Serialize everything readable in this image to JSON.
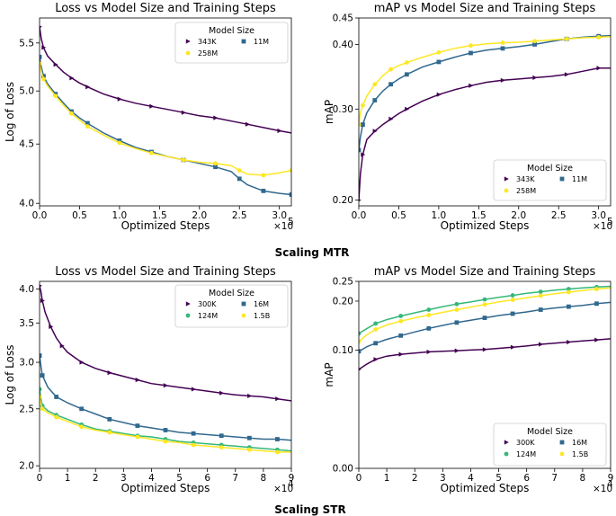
{
  "sections": [
    "Scaling MTR",
    "Scaling STR"
  ],
  "chart_data": [
    {
      "type": "line",
      "title": "Loss vs Model Size and Training Steps",
      "xlabel": "Optimized Steps",
      "ylabel": "Log of Loss",
      "x_multiplier": "×10",
      "x_exponent": "5",
      "xlim": [
        0,
        3.15
      ],
      "ylim": [
        3.98,
        5.78
      ],
      "yscale": "log",
      "xticks": [
        0,
        0.5,
        1,
        1.5,
        2,
        2.5,
        3
      ],
      "xtick_labels": [
        "0.0",
        "0.5",
        "1.0",
        "1.5",
        "2.0",
        "2.5",
        "3.0"
      ],
      "yticks": [
        4.0,
        4.5,
        5.0,
        5.5
      ],
      "ytick_labels": [
        "4.0",
        "4.5",
        "5.0",
        "5.5"
      ],
      "legend": {
        "title": "Model Size",
        "position": "top-right"
      },
      "series": [
        {
          "name": "343K",
          "color": "#440154",
          "marker": "triangle",
          "x": [
            0,
            0.02,
            0.05,
            0.1,
            0.2,
            0.3,
            0.4,
            0.5,
            0.6,
            0.8,
            1.0,
            1.2,
            1.4,
            1.6,
            1.8,
            2.0,
            2.2,
            2.4,
            2.6,
            2.8,
            3.0,
            3.15
          ],
          "y": [
            5.68,
            5.55,
            5.45,
            5.36,
            5.27,
            5.19,
            5.13,
            5.08,
            5.04,
            4.97,
            4.92,
            4.88,
            4.85,
            4.82,
            4.79,
            4.76,
            4.74,
            4.71,
            4.68,
            4.65,
            4.62,
            4.6
          ]
        },
        {
          "name": "11M",
          "color": "#31688e",
          "marker": "square",
          "x": [
            0,
            0.02,
            0.05,
            0.1,
            0.2,
            0.3,
            0.4,
            0.5,
            0.6,
            0.8,
            1.0,
            1.2,
            1.4,
            1.6,
            1.8,
            2.0,
            2.2,
            2.4,
            2.5,
            2.6,
            2.8,
            3.0,
            3.15
          ],
          "y": [
            5.35,
            5.25,
            5.15,
            5.07,
            4.97,
            4.88,
            4.8,
            4.74,
            4.69,
            4.6,
            4.53,
            4.47,
            4.43,
            4.39,
            4.36,
            4.33,
            4.3,
            4.26,
            4.2,
            4.15,
            4.1,
            4.08,
            4.07
          ]
        },
        {
          "name": "258M",
          "color": "#fde725",
          "marker": "circle",
          "x": [
            0,
            0.02,
            0.05,
            0.1,
            0.2,
            0.3,
            0.4,
            0.5,
            0.6,
            0.8,
            1.0,
            1.2,
            1.4,
            1.6,
            1.8,
            2.0,
            2.2,
            2.4,
            2.5,
            2.6,
            2.8,
            3.0,
            3.15
          ],
          "y": [
            5.28,
            5.2,
            5.12,
            5.05,
            4.95,
            4.86,
            4.78,
            4.72,
            4.66,
            4.58,
            4.51,
            4.46,
            4.42,
            4.39,
            4.36,
            4.34,
            4.33,
            4.31,
            4.27,
            4.24,
            4.23,
            4.25,
            4.27
          ]
        }
      ]
    },
    {
      "type": "line",
      "title": "mAP vs Model Size and Training Steps",
      "xlabel": "Optimized Steps",
      "ylabel": "mAP",
      "x_multiplier": "×10",
      "x_exponent": "5",
      "xlim": [
        0,
        3.15
      ],
      "ylim": [
        0.195,
        0.45
      ],
      "yscale": "log",
      "xticks": [
        0,
        0.5,
        1,
        1.5,
        2,
        2.5,
        3
      ],
      "xtick_labels": [
        "0.0",
        "0.5",
        "1.0",
        "1.5",
        "2.0",
        "2.5",
        "3.0"
      ],
      "yticks": [
        0.2,
        0.3,
        0.4,
        0.45
      ],
      "ytick_labels": [
        "0.20",
        "0.30",
        "0.40",
        "0.45"
      ],
      "legend": {
        "title": "Model Size",
        "position": "bottom-right"
      },
      "series": [
        {
          "name": "343K",
          "color": "#440154",
          "marker": "triangle",
          "x": [
            0,
            0.02,
            0.05,
            0.1,
            0.2,
            0.3,
            0.4,
            0.5,
            0.6,
            0.8,
            1.0,
            1.2,
            1.4,
            1.6,
            1.8,
            2.0,
            2.2,
            2.4,
            2.6,
            2.8,
            3.0,
            3.15
          ],
          "y": [
            0.2,
            0.225,
            0.245,
            0.262,
            0.272,
            0.28,
            0.287,
            0.294,
            0.3,
            0.311,
            0.32,
            0.327,
            0.333,
            0.338,
            0.341,
            0.343,
            0.345,
            0.347,
            0.35,
            0.355,
            0.36,
            0.36
          ]
        },
        {
          "name": "11M",
          "color": "#31688e",
          "marker": "square",
          "x": [
            0,
            0.02,
            0.05,
            0.1,
            0.2,
            0.3,
            0.4,
            0.5,
            0.6,
            0.8,
            1.0,
            1.2,
            1.4,
            1.6,
            1.8,
            2.0,
            2.2,
            2.4,
            2.6,
            2.8,
            3.0,
            3.15
          ],
          "y": [
            0.25,
            0.265,
            0.28,
            0.295,
            0.312,
            0.325,
            0.335,
            0.343,
            0.35,
            0.362,
            0.37,
            0.378,
            0.385,
            0.39,
            0.393,
            0.396,
            0.4,
            0.405,
            0.41,
            0.413,
            0.415,
            0.416
          ]
        },
        {
          "name": "258M",
          "color": "#fde725",
          "marker": "circle",
          "x": [
            0,
            0.02,
            0.05,
            0.1,
            0.2,
            0.3,
            0.4,
            0.5,
            0.6,
            0.8,
            1.0,
            1.2,
            1.4,
            1.6,
            1.8,
            2.0,
            2.2,
            2.4,
            2.6,
            2.8,
            3.0,
            3.15
          ],
          "y": [
            0.28,
            0.295,
            0.305,
            0.318,
            0.335,
            0.348,
            0.358,
            0.364,
            0.369,
            0.378,
            0.386,
            0.393,
            0.398,
            0.401,
            0.403,
            0.404,
            0.406,
            0.408,
            0.41,
            0.412,
            0.413,
            0.414
          ]
        }
      ]
    },
    {
      "type": "line",
      "title": "Loss vs Model Size and Training Steps",
      "xlabel": "Optimized Steps",
      "ylabel": "Log of Loss",
      "x_multiplier": "×10",
      "x_exponent": "4",
      "xlim": [
        0,
        9
      ],
      "ylim": [
        1.98,
        4.12
      ],
      "yscale": "log",
      "xticks": [
        0,
        1,
        2,
        3,
        4,
        5,
        6,
        7,
        8,
        9
      ],
      "xtick_labels": [
        "0",
        "1",
        "2",
        "3",
        "4",
        "5",
        "6",
        "7",
        "8",
        "9"
      ],
      "yticks": [
        2.0,
        2.5,
        3.0,
        3.5,
        4.0
      ],
      "ytick_labels": [
        "2.0",
        "2.5",
        "3.0",
        "3.5",
        "4.0"
      ],
      "legend": {
        "title": "Model Size",
        "position": "top-right"
      },
      "series": [
        {
          "name": "300K",
          "color": "#440154",
          "marker": "triangle",
          "x": [
            0,
            0.05,
            0.1,
            0.2,
            0.4,
            0.6,
            0.8,
            1.0,
            1.5,
            2.0,
            2.5,
            3.0,
            3.5,
            4.0,
            4.5,
            5.0,
            5.5,
            6.0,
            6.5,
            7.0,
            7.5,
            8.0,
            8.5,
            9.0
          ],
          "y": [
            4.05,
            3.95,
            3.82,
            3.65,
            3.45,
            3.3,
            3.2,
            3.12,
            3.0,
            2.93,
            2.88,
            2.84,
            2.8,
            2.76,
            2.74,
            2.72,
            2.7,
            2.68,
            2.66,
            2.64,
            2.63,
            2.62,
            2.6,
            2.58
          ]
        },
        {
          "name": "16M",
          "color": "#31688e",
          "marker": "square",
          "x": [
            0,
            0.05,
            0.1,
            0.3,
            0.6,
            1.0,
            1.5,
            2.0,
            2.5,
            3.0,
            3.5,
            4.0,
            4.5,
            5.0,
            5.5,
            6.0,
            6.5,
            7.0,
            7.5,
            8.0,
            8.5,
            9.0
          ],
          "y": [
            3.08,
            2.95,
            2.85,
            2.72,
            2.62,
            2.56,
            2.5,
            2.45,
            2.4,
            2.37,
            2.34,
            2.32,
            2.3,
            2.28,
            2.27,
            2.26,
            2.25,
            2.24,
            2.23,
            2.22,
            2.22,
            2.21
          ]
        },
        {
          "name": "124M",
          "color": "#35b779",
          "marker": "circle",
          "x": [
            0,
            0.05,
            0.1,
            0.3,
            0.6,
            1.0,
            1.5,
            2.0,
            2.5,
            3.0,
            3.5,
            4.0,
            4.5,
            5.0,
            5.5,
            6.0,
            6.5,
            7.0,
            7.5,
            8.0,
            8.5,
            9.0
          ],
          "y": [
            2.7,
            2.6,
            2.53,
            2.48,
            2.44,
            2.4,
            2.35,
            2.31,
            2.29,
            2.27,
            2.25,
            2.24,
            2.22,
            2.2,
            2.19,
            2.18,
            2.17,
            2.16,
            2.15,
            2.14,
            2.13,
            2.12
          ]
        },
        {
          "name": "1.5B",
          "color": "#fde725",
          "marker": "circle",
          "x": [
            0,
            0.05,
            0.1,
            0.3,
            0.6,
            1.0,
            1.5,
            2.0,
            2.5,
            3.0,
            3.5,
            4.0,
            4.5,
            5.0,
            5.5,
            6.0,
            6.5,
            7.0,
            7.5,
            8.0,
            8.5,
            9.0
          ],
          "y": [
            2.62,
            2.55,
            2.5,
            2.46,
            2.42,
            2.38,
            2.33,
            2.3,
            2.28,
            2.26,
            2.24,
            2.22,
            2.2,
            2.19,
            2.17,
            2.16,
            2.15,
            2.14,
            2.13,
            2.12,
            2.11,
            2.11
          ]
        }
      ]
    },
    {
      "type": "line",
      "title": "mAP vs Model Size and Training Steps",
      "xlabel": "Optimized Steps",
      "ylabel": "mAP",
      "x_multiplier": "×10",
      "x_exponent": "4",
      "xlim": [
        0,
        9
      ],
      "ylim": [
        0,
        0.25
      ],
      "yscale": "sqrt",
      "xticks": [
        0,
        1,
        2,
        3,
        4,
        5,
        6,
        7,
        8,
        9
      ],
      "xtick_labels": [
        "0",
        "1",
        "2",
        "3",
        "4",
        "5",
        "6",
        "7",
        "8",
        "9"
      ],
      "yticks": [
        0,
        0.1,
        0.2,
        0.25
      ],
      "ytick_labels": [
        "0.00",
        "0.10",
        "0.20",
        "0.25"
      ],
      "legend": {
        "title": "Model Size",
        "position": "bottom-right"
      },
      "series": [
        {
          "name": "300K",
          "color": "#440154",
          "marker": "triangle",
          "x": [
            0,
            0.3,
            0.6,
            1.0,
            1.5,
            2.0,
            2.5,
            3.0,
            3.5,
            4.0,
            4.5,
            5.0,
            5.5,
            6.0,
            6.5,
            7.0,
            7.5,
            8.0,
            8.5,
            9.0
          ],
          "y": [
            0.07,
            0.078,
            0.085,
            0.09,
            0.093,
            0.095,
            0.097,
            0.098,
            0.099,
            0.1,
            0.101,
            0.103,
            0.105,
            0.107,
            0.11,
            0.112,
            0.114,
            0.116,
            0.118,
            0.12
          ]
        },
        {
          "name": "16M",
          "color": "#31688e",
          "marker": "square",
          "x": [
            0,
            0.3,
            0.6,
            1.0,
            1.5,
            2.0,
            2.5,
            3.0,
            3.5,
            4.0,
            4.5,
            5.0,
            5.5,
            6.0,
            6.5,
            7.0,
            7.5,
            8.0,
            8.5,
            9.0
          ],
          "y": [
            0.098,
            0.106,
            0.112,
            0.119,
            0.126,
            0.133,
            0.14,
            0.146,
            0.152,
            0.157,
            0.162,
            0.167,
            0.171,
            0.175,
            0.18,
            0.184,
            0.187,
            0.19,
            0.194,
            0.197
          ]
        },
        {
          "name": "124M",
          "color": "#35b779",
          "marker": "circle",
          "x": [
            0,
            0.3,
            0.6,
            1.0,
            1.5,
            2.0,
            2.5,
            3.0,
            3.5,
            4.0,
            4.5,
            5.0,
            5.5,
            6.0,
            6.5,
            7.0,
            7.5,
            8.0,
            8.5,
            9.0
          ],
          "y": [
            0.13,
            0.14,
            0.15,
            0.158,
            0.166,
            0.173,
            0.18,
            0.187,
            0.193,
            0.198,
            0.204,
            0.209,
            0.214,
            0.219,
            0.223,
            0.227,
            0.23,
            0.233,
            0.235,
            0.237
          ]
        },
        {
          "name": "1.5B",
          "color": "#fde725",
          "marker": "circle",
          "x": [
            0,
            0.3,
            0.6,
            1.0,
            1.5,
            2.0,
            2.5,
            3.0,
            3.5,
            4.0,
            4.5,
            5.0,
            5.5,
            6.0,
            6.5,
            7.0,
            7.5,
            8.0,
            8.5,
            9.0
          ],
          "y": [
            0.115,
            0.128,
            0.138,
            0.147,
            0.155,
            0.162,
            0.168,
            0.174,
            0.18,
            0.186,
            0.192,
            0.198,
            0.203,
            0.208,
            0.213,
            0.218,
            0.222,
            0.226,
            0.23,
            0.233
          ]
        }
      ]
    }
  ]
}
